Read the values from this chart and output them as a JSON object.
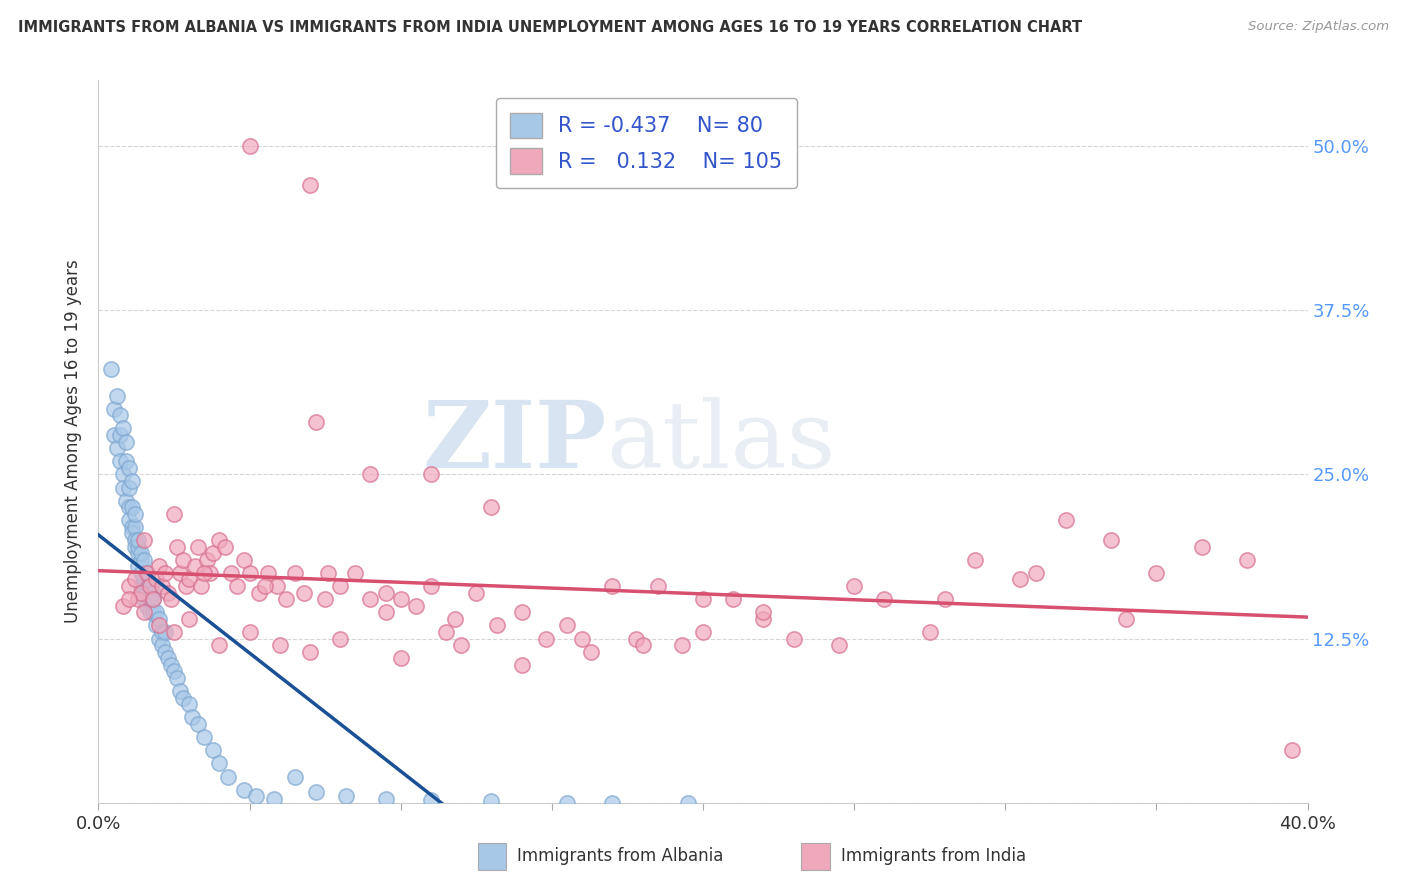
{
  "title": "IMMIGRANTS FROM ALBANIA VS IMMIGRANTS FROM INDIA UNEMPLOYMENT AMONG AGES 16 TO 19 YEARS CORRELATION CHART",
  "source": "Source: ZipAtlas.com",
  "ylabel": "Unemployment Among Ages 16 to 19 years",
  "xlim": [
    0.0,
    0.4
  ],
  "ylim": [
    0.0,
    0.55
  ],
  "albania_R": -0.437,
  "albania_N": 80,
  "india_R": 0.132,
  "india_N": 105,
  "albania_color": "#a8c8e8",
  "albania_edge_color": "#80a8d0",
  "india_color": "#f0a8bc",
  "india_edge_color": "#d87090",
  "albania_line_color": "#1a5096",
  "india_line_color": "#d85070",
  "legend_albania_label": "Immigrants from Albania",
  "legend_india_label": "Immigrants from India",
  "background_color": "#ffffff",
  "grid_color": "#cccccc",
  "watermark_zip": "ZIP",
  "watermark_atlas": "atlas",
  "title_color": "#333333",
  "source_color": "#999999",
  "axis_color": "#333333",
  "tick_color": "#5599ff",
  "albania_scatter_x": [
    0.004,
    0.005,
    0.005,
    0.006,
    0.006,
    0.007,
    0.007,
    0.007,
    0.008,
    0.008,
    0.008,
    0.009,
    0.009,
    0.009,
    0.01,
    0.01,
    0.01,
    0.01,
    0.011,
    0.011,
    0.011,
    0.011,
    0.012,
    0.012,
    0.012,
    0.012,
    0.013,
    0.013,
    0.013,
    0.013,
    0.014,
    0.014,
    0.014,
    0.014,
    0.015,
    0.015,
    0.015,
    0.015,
    0.016,
    0.016,
    0.016,
    0.017,
    0.017,
    0.017,
    0.018,
    0.018,
    0.018,
    0.019,
    0.019,
    0.02,
    0.02,
    0.021,
    0.021,
    0.022,
    0.022,
    0.023,
    0.024,
    0.025,
    0.026,
    0.027,
    0.028,
    0.03,
    0.031,
    0.033,
    0.035,
    0.038,
    0.04,
    0.043,
    0.048,
    0.052,
    0.058,
    0.065,
    0.072,
    0.082,
    0.095,
    0.11,
    0.13,
    0.155,
    0.17,
    0.195
  ],
  "albania_scatter_y": [
    0.33,
    0.3,
    0.28,
    0.31,
    0.27,
    0.28,
    0.26,
    0.295,
    0.25,
    0.24,
    0.285,
    0.26,
    0.23,
    0.275,
    0.24,
    0.225,
    0.215,
    0.255,
    0.225,
    0.21,
    0.205,
    0.245,
    0.21,
    0.2,
    0.195,
    0.22,
    0.19,
    0.195,
    0.18,
    0.2,
    0.185,
    0.175,
    0.165,
    0.19,
    0.17,
    0.165,
    0.155,
    0.185,
    0.16,
    0.15,
    0.175,
    0.155,
    0.145,
    0.165,
    0.16,
    0.145,
    0.155,
    0.135,
    0.145,
    0.125,
    0.14,
    0.13,
    0.12,
    0.115,
    0.13,
    0.11,
    0.105,
    0.1,
    0.095,
    0.085,
    0.08,
    0.075,
    0.065,
    0.06,
    0.05,
    0.04,
    0.03,
    0.02,
    0.01,
    0.005,
    0.003,
    0.02,
    0.008,
    0.005,
    0.003,
    0.002,
    0.001,
    0.0,
    0.0,
    0.0
  ],
  "india_scatter_x": [
    0.008,
    0.01,
    0.012,
    0.013,
    0.014,
    0.015,
    0.016,
    0.017,
    0.018,
    0.019,
    0.02,
    0.021,
    0.022,
    0.023,
    0.024,
    0.025,
    0.026,
    0.027,
    0.028,
    0.029,
    0.03,
    0.032,
    0.033,
    0.034,
    0.036,
    0.037,
    0.038,
    0.04,
    0.042,
    0.044,
    0.046,
    0.048,
    0.05,
    0.053,
    0.056,
    0.059,
    0.062,
    0.065,
    0.068,
    0.072,
    0.076,
    0.08,
    0.085,
    0.09,
    0.095,
    0.1,
    0.105,
    0.11,
    0.118,
    0.125,
    0.132,
    0.14,
    0.148,
    0.155,
    0.163,
    0.17,
    0.178,
    0.185,
    0.193,
    0.2,
    0.21,
    0.22,
    0.23,
    0.245,
    0.26,
    0.275,
    0.29,
    0.305,
    0.32,
    0.335,
    0.35,
    0.365,
    0.38,
    0.395,
    0.01,
    0.015,
    0.02,
    0.025,
    0.03,
    0.04,
    0.05,
    0.06,
    0.07,
    0.08,
    0.1,
    0.12,
    0.14,
    0.16,
    0.18,
    0.2,
    0.22,
    0.25,
    0.28,
    0.31,
    0.34,
    0.05,
    0.07,
    0.09,
    0.11,
    0.13,
    0.035,
    0.055,
    0.075,
    0.095,
    0.115
  ],
  "india_scatter_y": [
    0.15,
    0.165,
    0.17,
    0.155,
    0.16,
    0.2,
    0.175,
    0.165,
    0.155,
    0.17,
    0.18,
    0.165,
    0.175,
    0.16,
    0.155,
    0.22,
    0.195,
    0.175,
    0.185,
    0.165,
    0.17,
    0.18,
    0.195,
    0.165,
    0.185,
    0.175,
    0.19,
    0.2,
    0.195,
    0.175,
    0.165,
    0.185,
    0.175,
    0.16,
    0.175,
    0.165,
    0.155,
    0.175,
    0.16,
    0.29,
    0.175,
    0.165,
    0.175,
    0.155,
    0.16,
    0.155,
    0.15,
    0.165,
    0.14,
    0.16,
    0.135,
    0.145,
    0.125,
    0.135,
    0.115,
    0.165,
    0.125,
    0.165,
    0.12,
    0.13,
    0.155,
    0.14,
    0.125,
    0.12,
    0.155,
    0.13,
    0.185,
    0.17,
    0.215,
    0.2,
    0.175,
    0.195,
    0.185,
    0.04,
    0.155,
    0.145,
    0.135,
    0.13,
    0.14,
    0.12,
    0.13,
    0.12,
    0.115,
    0.125,
    0.11,
    0.12,
    0.105,
    0.125,
    0.12,
    0.155,
    0.145,
    0.165,
    0.155,
    0.175,
    0.14,
    0.5,
    0.47,
    0.25,
    0.25,
    0.225,
    0.175,
    0.165,
    0.155,
    0.145,
    0.13
  ]
}
